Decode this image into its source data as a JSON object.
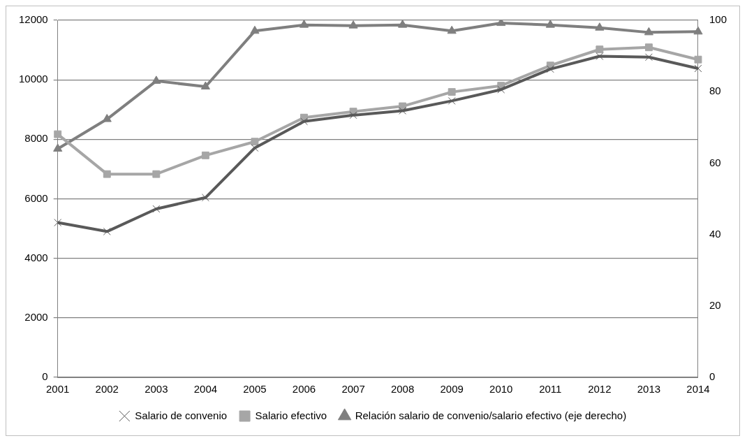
{
  "chart_data": {
    "type": "line",
    "categories": [
      "2001",
      "2002",
      "2003",
      "2004",
      "2005",
      "2006",
      "2007",
      "2008",
      "2009",
      "2010",
      "2011",
      "2012",
      "2013",
      "2014"
    ],
    "series": [
      {
        "name": "Salario de convenio",
        "color": "#595959",
        "marker": "cross",
        "values": [
          5200,
          4900,
          5660,
          6040,
          7710,
          8600,
          8810,
          8960,
          9290,
          9670,
          10360,
          10790,
          10760,
          10380
        ]
      },
      {
        "name": "Salario efectivo",
        "color": "#a6a6a6",
        "marker": "square",
        "values": [
          8170,
          6830,
          6830,
          7460,
          7920,
          8730,
          8930,
          9110,
          9590,
          9800,
          10480,
          11020,
          11090,
          10680
        ]
      },
      {
        "name": "Relación salario de convenio/salario efectivo (eje derecho)",
        "color": "#7f7f7f",
        "marker": "triangle",
        "axis": "y2",
        "values": [
          64,
          72.3,
          83,
          81.4,
          97,
          98.7,
          98.5,
          98.7,
          97,
          99.2,
          98.7,
          97.9,
          96.6,
          96.8
        ]
      }
    ],
    "ylim": [
      0,
      12000
    ],
    "yticks": [
      0,
      2000,
      4000,
      6000,
      8000,
      10000,
      12000
    ],
    "y2lim": [
      0,
      100
    ],
    "y2ticks": [
      0,
      20,
      40,
      60,
      80,
      100
    ],
    "grid": "y",
    "legend": "bottom",
    "line_style": "solid"
  }
}
